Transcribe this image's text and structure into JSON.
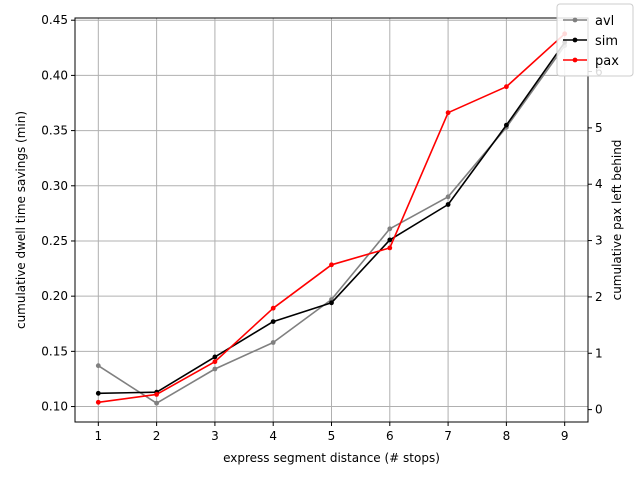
{
  "chart_data": {
    "type": "line",
    "title": "",
    "xlabel": "express segment distance (# stops)",
    "ylabel_left": "cumulative dwell time savings (min)",
    "ylabel_right": "cumulative pax left behind",
    "x": [
      1,
      2,
      3,
      4,
      5,
      6,
      7,
      8,
      9
    ],
    "xlim": [
      0.6,
      9.4
    ],
    "x_ticks": [
      "1",
      "2",
      "3",
      "4",
      "5",
      "6",
      "7",
      "8",
      "9"
    ],
    "ylim_left": [
      0.086,
      0.452
    ],
    "y_ticks_left": [
      "0.10",
      "0.15",
      "0.20",
      "0.25",
      "0.30",
      "0.35",
      "0.40",
      "0.45"
    ],
    "ylim_right": [
      -0.22,
      6.95
    ],
    "y_ticks_right": [
      "0",
      "1",
      "2",
      "3",
      "4",
      "5",
      "6"
    ],
    "grid": true,
    "legend_position": "top-right",
    "series": [
      {
        "name": "avl",
        "axis": "left",
        "color": "#808080",
        "values": [
          0.137,
          0.103,
          0.134,
          0.158,
          0.197,
          0.261,
          0.29,
          0.353,
          0.427
        ]
      },
      {
        "name": "sim",
        "axis": "left",
        "color": "#000000",
        "values": [
          0.112,
          0.113,
          0.145,
          0.177,
          0.194,
          0.251,
          0.283,
          0.355,
          0.43
        ]
      },
      {
        "name": "pax",
        "axis": "right",
        "color": "#ff0000",
        "values": [
          0.13,
          0.27,
          0.85,
          1.8,
          2.57,
          2.87,
          5.27,
          5.73,
          6.67
        ]
      }
    ]
  }
}
